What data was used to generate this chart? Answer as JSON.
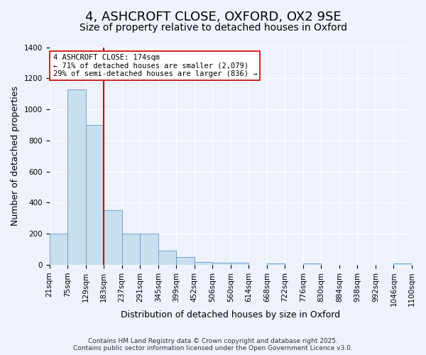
{
  "title": "4, ASHCROFT CLOSE, OXFORD, OX2 9SE",
  "subtitle": "Size of property relative to detached houses in Oxford",
  "xlabel": "Distribution of detached houses by size in Oxford",
  "ylabel": "Number of detached properties",
  "bin_labels": [
    "21sqm",
    "75sqm",
    "129sqm",
    "183sqm",
    "237sqm",
    "291sqm",
    "345sqm",
    "399sqm",
    "452sqm",
    "506sqm",
    "560sqm",
    "614sqm",
    "668sqm",
    "722sqm",
    "776sqm",
    "830sqm",
    "884sqm",
    "938sqm",
    "992sqm",
    "1046sqm",
    "1100sqm"
  ],
  "bar_heights": [
    200,
    1130,
    900,
    350,
    200,
    200,
    90,
    50,
    20,
    15,
    15,
    0,
    10,
    0,
    10,
    0,
    0,
    0,
    0,
    10
  ],
  "bar_color": "#c8dff0",
  "bar_edge_color": "#6699cc",
  "vline_color": "#cc0000",
  "vline_pos": 3.5,
  "annotation_text": "4 ASHCROFT CLOSE: 174sqm\n← 71% of detached houses are smaller (2,079)\n29% of semi-detached houses are larger (836) →",
  "annotation_box_color": "#ffffff",
  "annotation_box_edge": "#cc0000",
  "ylim": [
    0,
    1400
  ],
  "yticks": [
    0,
    200,
    400,
    600,
    800,
    1000,
    1200,
    1400
  ],
  "background_color": "#eef2fa",
  "footer_line1": "Contains HM Land Registry data © Crown copyright and database right 2025.",
  "footer_line2": "Contains public sector information licensed under the Open Government Licence v3.0.",
  "title_fontsize": 13,
  "subtitle_fontsize": 10,
  "axis_label_fontsize": 9,
  "tick_fontsize": 7.5,
  "footer_fontsize": 6.5
}
